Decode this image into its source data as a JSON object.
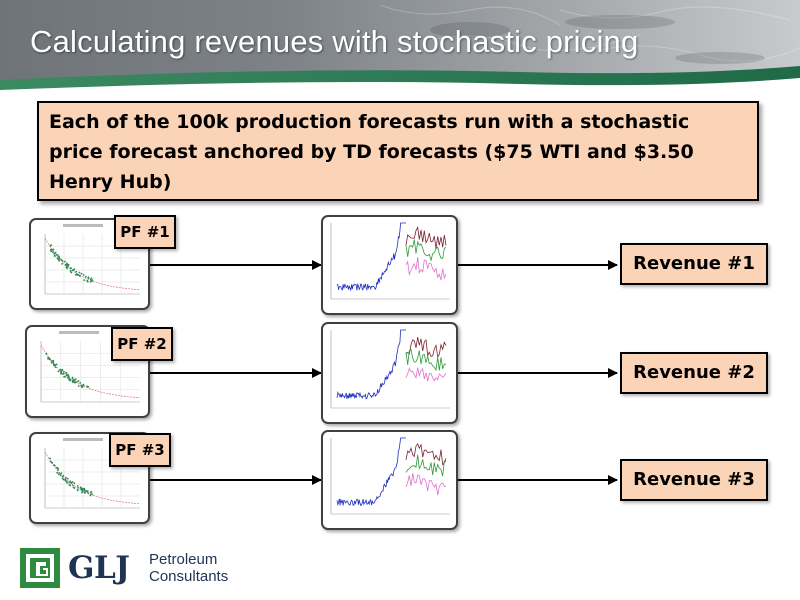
{
  "slide": {
    "title": "Calculating revenues with stochastic pricing",
    "callout_text": "Each of the 100k production forecasts run with a stochastic price forecast anchored by TD forecasts ($75 WTI and $3.50 Henry Hub)"
  },
  "rows": [
    {
      "pf_label": "PF #1",
      "revenue_label": "Revenue #1"
    },
    {
      "pf_label": "PF #2",
      "revenue_label": "Revenue #2"
    },
    {
      "pf_label": "PF #3",
      "revenue_label": "Revenue #3"
    }
  ],
  "logo": {
    "name": "GLJ",
    "line1": "Petroleum",
    "line2": "Consultants"
  },
  "colors": {
    "callout_fill": "#fbd3b6",
    "header_green": "#2f7f5a",
    "logo_green": "#2e8b3e",
    "logo_navy": "#1e3452",
    "price_history": "#1f2fbf",
    "sim_dark_red": "#7a2030",
    "sim_green": "#2d9a3a",
    "sim_pink": "#e070d0",
    "decline_points": "#2e8b57",
    "decline_curve": "#e07070"
  }
}
